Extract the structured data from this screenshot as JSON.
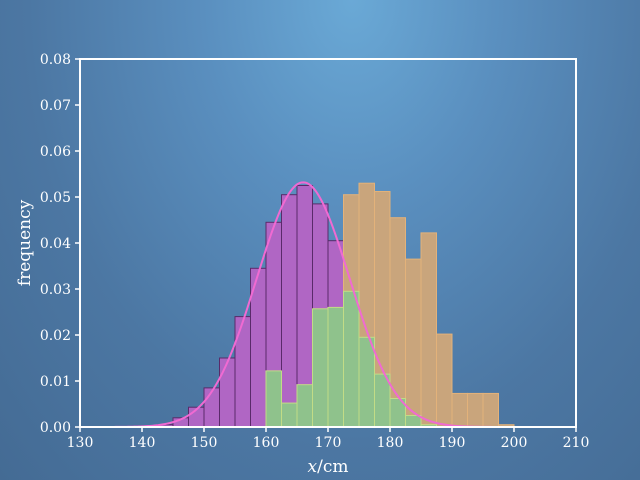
{
  "chart_data": {
    "type": "bar",
    "title": "",
    "xlabel_var": "x",
    "xlabel_unit": "/cm",
    "ylabel": "frequency",
    "xlim": [
      130,
      210
    ],
    "ylim": [
      0,
      0.08
    ],
    "xticks": [
      130,
      140,
      150,
      160,
      170,
      180,
      190,
      200,
      210
    ],
    "xtick_labels": [
      "130",
      "140",
      "150",
      "160",
      "170",
      "180",
      "190",
      "200",
      "210"
    ],
    "yticks": [
      0,
      0.01,
      0.02,
      0.03,
      0.04,
      0.05,
      0.06,
      0.07,
      0.08
    ],
    "ytick_labels": [
      "0.00",
      "0.01",
      "0.02",
      "0.03",
      "0.04",
      "0.05",
      "0.06",
      "0.07",
      "0.08"
    ],
    "bin_width": 2.5,
    "grid": false,
    "series": [
      {
        "kind": "histogram",
        "color": "#b066c4",
        "edge": "#5a2a6a",
        "bin_starts": [
          142.5,
          145,
          147.5,
          150,
          152.5,
          155,
          157.5,
          160,
          162.5,
          165,
          167.5,
          170,
          172.5
        ],
        "values": [
          0.0005,
          0.002,
          0.0043,
          0.0085,
          0.015,
          0.024,
          0.0345,
          0.0445,
          0.0505,
          0.0525,
          0.0485,
          0.0405,
          0.0305
        ]
      },
      {
        "kind": "histogram",
        "color": "#c9a57c",
        "edge": "#e3b27a",
        "bin_starts": [
          172.5,
          175,
          177.5,
          180,
          182.5,
          185,
          187.5,
          190,
          192.5,
          195,
          197.5
        ],
        "values": [
          0.0505,
          0.053,
          0.0512,
          0.0455,
          0.0365,
          0.0422,
          0.0202,
          0.0073,
          0.0073,
          0.0073,
          0.0005
        ]
      },
      {
        "kind": "histogram",
        "color": "#8fc28c",
        "edge": "#c2dc86",
        "bin_starts": [
          160,
          162.5,
          165,
          167.5,
          170,
          172.5,
          175,
          177.5,
          180,
          182.5,
          185
        ],
        "values": [
          0.0122,
          0.0052,
          0.0092,
          0.0257,
          0.026,
          0.0295,
          0.0195,
          0.0115,
          0.0062,
          0.0025,
          0.0005
        ]
      },
      {
        "kind": "curve",
        "distribution": "normal",
        "mean": 166,
        "sd": 7.5,
        "color": "#f06ad2"
      }
    ]
  }
}
